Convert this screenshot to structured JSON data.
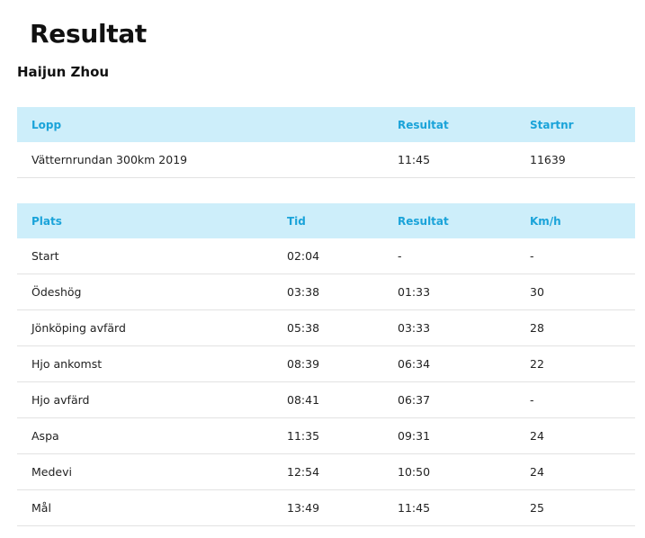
{
  "page_title": "Resultat",
  "athlete_name": "Haijun Zhou",
  "race_table": {
    "headers": [
      "Lopp",
      "Resultat",
      "Startnr"
    ],
    "rows": [
      [
        "Vätternrundan 300km 2019",
        "11:45",
        "11639"
      ]
    ]
  },
  "split_table": {
    "headers": [
      "Plats",
      "Tid",
      "Resultat",
      "Km/h"
    ],
    "rows": [
      [
        "Start",
        "02:04",
        "-",
        "-"
      ],
      [
        "Ödeshög",
        "03:38",
        "01:33",
        "30"
      ],
      [
        "Jönköping avfärd",
        "05:38",
        "03:33",
        "28"
      ],
      [
        "Hjo ankomst",
        "08:39",
        "06:34",
        "22"
      ],
      [
        "Hjo avfärd",
        "08:41",
        "06:37",
        "-"
      ],
      [
        "Aspa",
        "11:35",
        "09:31",
        "24"
      ],
      [
        "Medevi",
        "12:54",
        "10:50",
        "24"
      ],
      [
        "Mål",
        "13:49",
        "11:45",
        "25"
      ]
    ]
  },
  "colors": {
    "header_bg": "#cdeefa",
    "header_text": "#1aa3d9",
    "row_border": "#e2e2e2"
  }
}
